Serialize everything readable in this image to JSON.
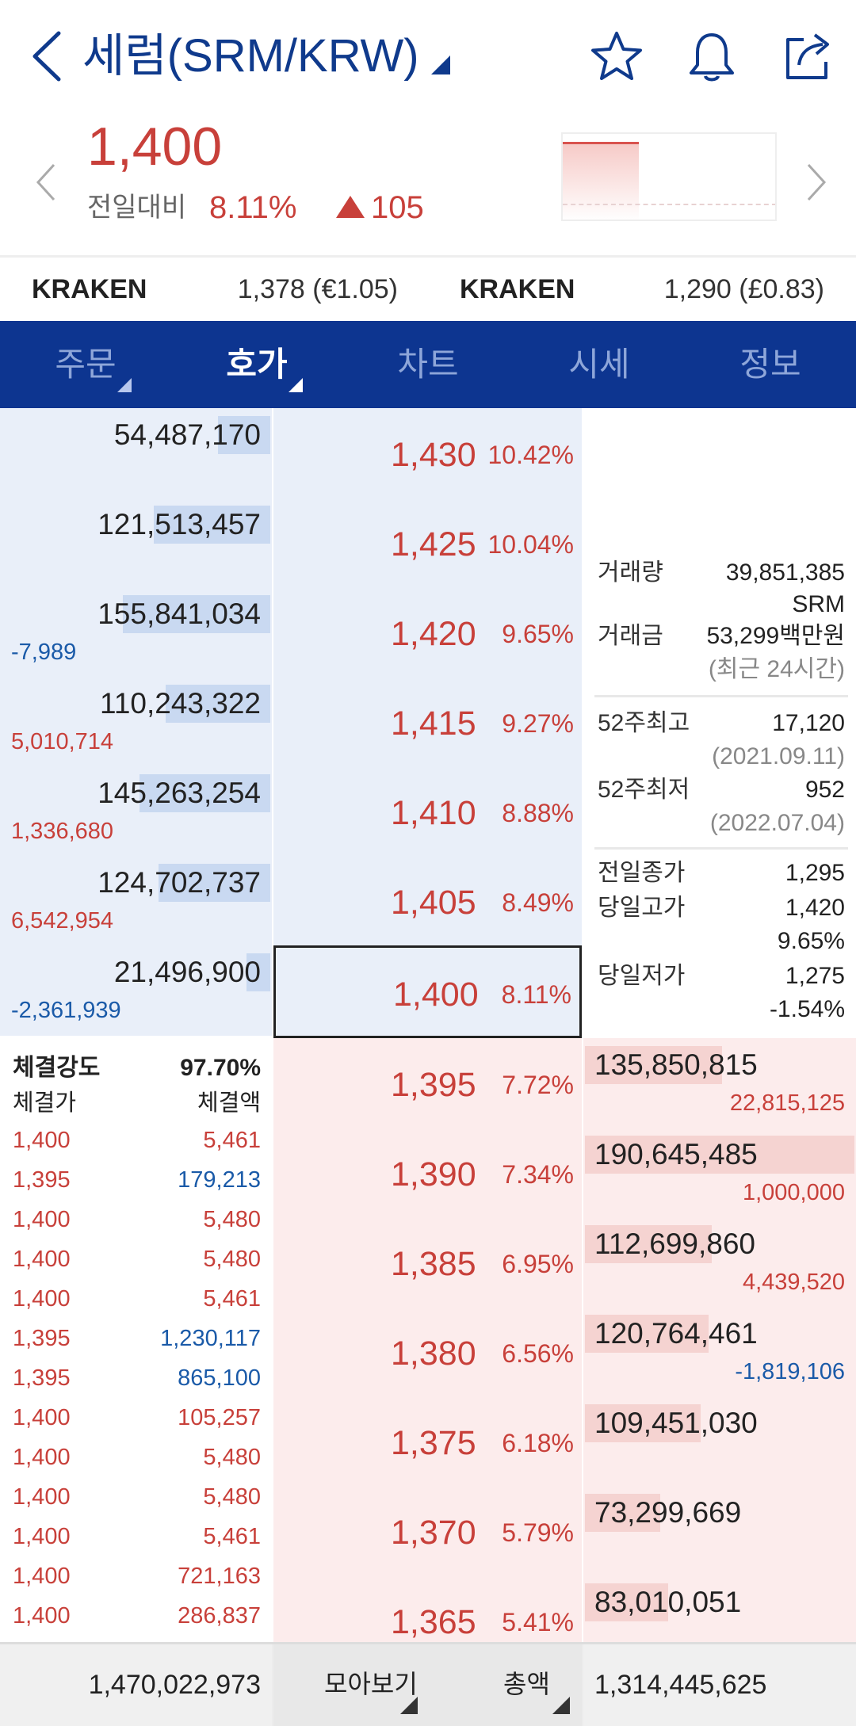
{
  "header": {
    "title": "세럼(SRM/KRW)",
    "icons": [
      "back-icon",
      "star-icon",
      "bell-icon",
      "share-icon"
    ]
  },
  "price": {
    "current": "1,400",
    "compare_label": "전일대비",
    "change_pct": "8.11%",
    "change_abs": "105"
  },
  "kraken": [
    {
      "name": "KRAKEN",
      "value": "1,378 (€1.05)"
    },
    {
      "name": "KRAKEN",
      "value": "1,290 (£0.83)"
    }
  ],
  "tabs": [
    {
      "label": "주문"
    },
    {
      "label": "호가"
    },
    {
      "label": "차트"
    },
    {
      "label": "시세"
    },
    {
      "label": "정보"
    }
  ],
  "asks": [
    {
      "qty": "54,487,170",
      "change": "",
      "price": "1,430",
      "pct": "10.42%",
      "bar": 0.22
    },
    {
      "qty": "121,513,457",
      "change": "",
      "price": "1,425",
      "pct": "10.04%",
      "bar": 0.49
    },
    {
      "qty": "155,841,034",
      "change": "-7,989",
      "price": "1,420",
      "pct": "9.65%",
      "bar": 0.62
    },
    {
      "qty": "110,243,322",
      "change": "5,010,714",
      "price": "1,415",
      "pct": "9.27%",
      "bar": 0.44
    },
    {
      "qty": "145,263,254",
      "change": "1,336,680",
      "price": "1,410",
      "pct": "8.88%",
      "bar": 0.55
    },
    {
      "qty": "124,702,737",
      "change": "6,542,954",
      "price": "1,405",
      "pct": "8.49%",
      "bar": 0.47
    },
    {
      "qty": "21,496,900",
      "change": "-2,361,939",
      "price": "1,400",
      "pct": "8.11%",
      "bar": 0.1
    }
  ],
  "bids": [
    {
      "qty": "135,850,815",
      "change": "22,815,125",
      "price": "1,395",
      "pct": "7.72%",
      "bar": 0.51
    },
    {
      "qty": "190,645,485",
      "change": "1,000,000",
      "price": "1,390",
      "pct": "7.34%",
      "bar": 1.0
    },
    {
      "qty": "112,699,860",
      "change": "4,439,520",
      "price": "1,385",
      "pct": "6.95%",
      "bar": 0.47
    },
    {
      "qty": "120,764,461",
      "change": "-1,819,106",
      "price": "1,380",
      "pct": "6.56%",
      "bar": 0.46
    },
    {
      "qty": "109,451,030",
      "change": "",
      "price": "1,375",
      "pct": "6.18%",
      "bar": 0.43
    },
    {
      "qty": "73,299,669",
      "change": "",
      "price": "1,370",
      "pct": "5.79%",
      "bar": 0.28
    },
    {
      "qty": "83,010,051",
      "change": "",
      "price": "1,365",
      "pct": "5.41%",
      "bar": 0.31
    }
  ],
  "info": {
    "volume_label": "거래량",
    "volume_value": "39,851,385",
    "volume_unit": "SRM",
    "amount_label": "거래금",
    "amount_value": "53,299백만원",
    "amount_note": "(최근 24시간)",
    "high52_label": "52주최고",
    "high52_value": "17,120",
    "high52_date": "(2021.09.11)",
    "low52_label": "52주최저",
    "low52_value": "952",
    "low52_date": "(2022.07.04)",
    "prev_close_label": "전일종가",
    "prev_close_value": "1,295",
    "day_high_label": "당일고가",
    "day_high_value": "1,420",
    "day_high_pct": "9.65%",
    "day_low_label": "당일저가",
    "day_low_value": "1,275",
    "day_low_pct": "-1.54%"
  },
  "ticks": {
    "strength_label": "체결강도",
    "strength_value": "97.70%",
    "price_header": "체결가",
    "amount_header": "체결액",
    "rows": [
      {
        "price": "1,400",
        "amount": "5,461",
        "dir": "up"
      },
      {
        "price": "1,395",
        "amount": "179,213",
        "dir": "down"
      },
      {
        "price": "1,400",
        "amount": "5,480",
        "dir": "up"
      },
      {
        "price": "1,400",
        "amount": "5,480",
        "dir": "up"
      },
      {
        "price": "1,400",
        "amount": "5,461",
        "dir": "up"
      },
      {
        "price": "1,395",
        "amount": "1,230,117",
        "dir": "down"
      },
      {
        "price": "1,395",
        "amount": "865,100",
        "dir": "down"
      },
      {
        "price": "1,400",
        "amount": "105,257",
        "dir": "up"
      },
      {
        "price": "1,400",
        "amount": "5,480",
        "dir": "up"
      },
      {
        "price": "1,400",
        "amount": "5,480",
        "dir": "up"
      },
      {
        "price": "1,400",
        "amount": "5,461",
        "dir": "up"
      },
      {
        "price": "1,400",
        "amount": "721,163",
        "dir": "up"
      },
      {
        "price": "1,400",
        "amount": "286,837",
        "dir": "up"
      }
    ]
  },
  "footer": {
    "total_ask": "1,470,022,973",
    "group_label": "모아보기",
    "mode_label": "총액",
    "total_bid": "1,314,445,625"
  },
  "colors": {
    "brand": "#0d3590",
    "up": "#c8403a",
    "down": "#1a5aa8"
  }
}
